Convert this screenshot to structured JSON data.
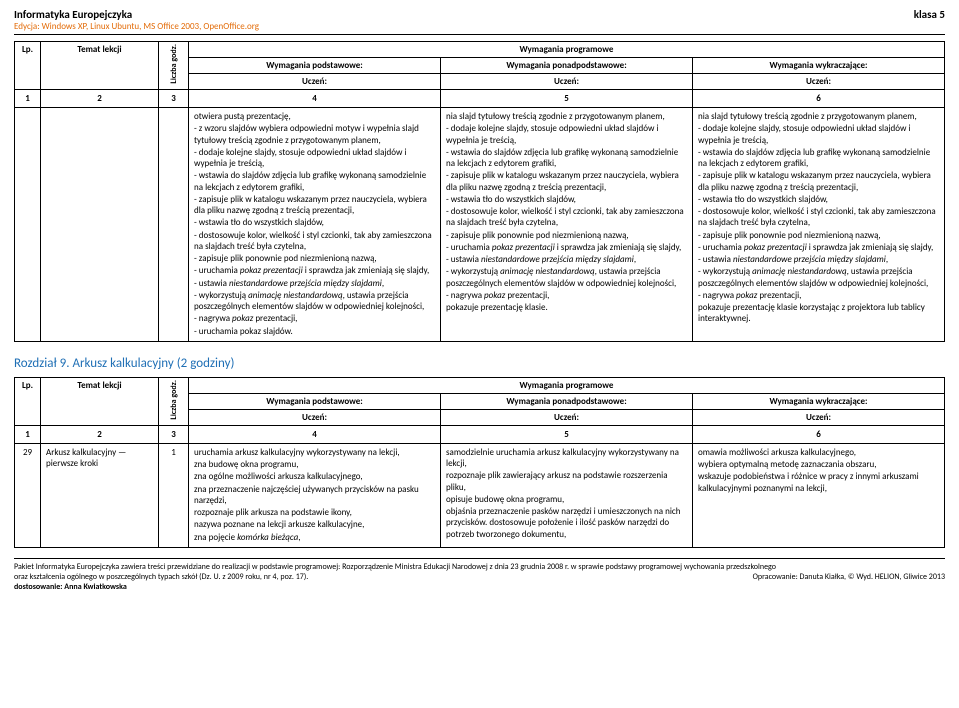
{
  "header": {
    "title": "Informatyka Europejczyka",
    "subtitle": "Edycja: Windows XP, Linux Ubuntu, MS Office 2003, OpenOffice.org",
    "klasa": "klasa 5"
  },
  "tableHead": {
    "lp": "Lp.",
    "temat": "Temat lekcji",
    "liczba": "Liczba godz.",
    "wymagania": "Wymagania programowe",
    "podstawowe": "Wymagania podstawowe:",
    "ponad": "Wymagania ponadpodstawowe:",
    "wykr": "Wymagania wykraczające:",
    "uczen": "Uczeń:",
    "n1": "1",
    "n2": "2",
    "n3": "3",
    "n4": "4",
    "n5": "5",
    "n6": "6"
  },
  "t1": {
    "c4": "otwiera pustą prezentację,\n- z wzoru slajdów wybiera odpowiedni motyw i wypełnia slajd tytułowy treścią zgodnie z przygotowanym planem,\n- dodaje kolejne slajdy, stosuje odpowiedni układ slajdów i wypełnia je treścią,\n- wstawia do slajdów zdjęcia lub grafikę wykonaną samodzielnie na lekcjach z edytorem grafiki,\n- zapisuje plik w katalogu wskazanym przez nauczyciela, wybiera dla pliku nazwę zgodną z treścią prezentacji,\n- wstawia tło do wszystkich slajdów,\n- dostosowuje kolor, wielkość i styl czcionki, tak aby zamieszczona na slajdach treść była czytelna,\n- zapisuje plik ponownie pod niezmienioną nazwą,\n- uruchamia <i>pokaz prezentacji</i> i sprawdza jak zmieniają się slajdy,\n- ustawia <i>niestandardowe przejścia między slajdami</i>,\n- wykorzystują <i>animację niestandardową</i>, ustawia przejścia poszczególnych elementów slajdów w odpowiedniej kolejności,\n- nagrywa <i>pokaz</i> prezentacji,\n- uruchamia pokaz slajdów.",
    "c5": "nia slajd tytułowy treścią zgodnie z przygotowanym planem,\n- dodaje kolejne slajdy, stosuje odpowiedni układ slajdów i wypełnia je treścią,\n- wstawia do slajdów zdjęcia lub grafikę wykonaną samodzielnie na lekcjach z edytorem grafiki,\n- zapisuje plik w katalogu wskazanym przez nauczyciela, wybiera dla pliku nazwę zgodną z treścią prezentacji,\n- wstawia tło do wszystkich slajdów,\n- dostosowuje kolor, wielkość i styl czcionki, tak aby zamieszczona na slajdach treść była czytelna,\n- zapisuje plik ponownie pod niezmienioną nazwą,\n- uruchamia <i>pokaz prezentacji</i> i sprawdza jak zmieniają się slajdy,\n- ustawia <i>niestandardowe przejścia między slajdami</i>,\n- wykorzystują <i>animację niestandardową</i>, ustawia przejścia poszczególnych elementów slajdów w odpowiedniej kolejności,\n- nagrywa <i>pokaz</i> prezentacji,\npokazuje prezentację klasie.",
    "c6": "nia slajd tytułowy treścią zgodnie z przygotowanym planem,\n- dodaje kolejne slajdy, stosuje odpowiedni układ slajdów i wypełnia je treścią,\n- wstawia do slajdów zdjęcia lub grafikę wykonaną samodzielnie na lekcjach z edytorem grafiki,\n- zapisuje plik w katalogu wskazanym przez nauczyciela, wybiera dla pliku nazwę zgodną z treścią prezentacji,\n- wstawia tło do wszystkich slajdów,\n- dostosowuje kolor, wielkość i styl czcionki, tak aby zamieszczona na slajdach treść była czytelna,\n- zapisuje plik ponownie pod niezmienioną nazwą,\n- uruchamia <i>pokaz prezentacji</i> i sprawdza jak zmieniają się slajdy,\n- ustawia <i>niestandardowe przejścia między slajdami</i>,\n- wykorzystują <i>animację niestandardową</i>, ustawia przejścia poszczególnych elementów slajdów w odpowiedniej kolejności,\n- nagrywa <i>pokaz</i> prezentacji,\npokazuje prezentację klasie korzystając z projektora lub tablicy interaktywnej."
  },
  "section9": "Rozdział 9. Arkusz kalkulacyjny (2 godziny)",
  "t2": {
    "lp": "29",
    "temat": "Arkusz kalkulacyjny — pierwsze kroki",
    "godz": "1",
    "c4": "uruchamia arkusz kalkulacyjny wykorzystywany na lekcji,\nzna budowę okna programu,\nzna ogólne możliwości arkusza kalkulacyjnego,\nzna przeznaczenie najczęściej używanych przycisków na pasku narzędzi,\nrozpoznaje plik arkusza na podstawie ikony,\nnazywa poznane na lekcji arkusze kalkulacyjne,\nzna pojęcie <i>komórka bieżąca</i>,",
    "c5": "samodzielnie uruchamia arkusz kalkulacyjny wykorzystywany na lekcji,\nrozpoznaje plik zawierający arkusz na podstawie rozszerzenia pliku,\nopisuje budowę okna programu,\nobjaśnia przeznaczenie pasków narzędzi i umieszczonych na nich przycisków. dostosowuje położenie i ilość pasków narzędzi do potrzeb tworzonego dokumentu,",
    "c6": "omawia możliwości arkusza kalkulacyjnego,\nwybiera optymalną metodę zaznaczania obszaru,\nwskazuje podobieństwa i różnice w pracy z innymi arkuszami kalkulacyjnymi poznanymi na lekcji,"
  },
  "footer": {
    "l1": "Pakiet Informatyka Europejczyka zawiera treści przewidziane do realizacji w podstawie programowej: Rozporządzenie Ministra Edukacji Narodowej z dnia 23 grudnia 2008 r. w sprawie podstawy programowej wychowania przedszkolnego",
    "l2": "oraz kształcenia ogólnego w poszczególnych typach szkół (Dz. U. z 2009 roku, nr 4, poz. 17).",
    "r2": "Opracowanie: Danuta Kiałka, © Wyd. HELION, Gliwice 2013",
    "l3": "dostosowanie: Anna Kwiatkowska"
  }
}
